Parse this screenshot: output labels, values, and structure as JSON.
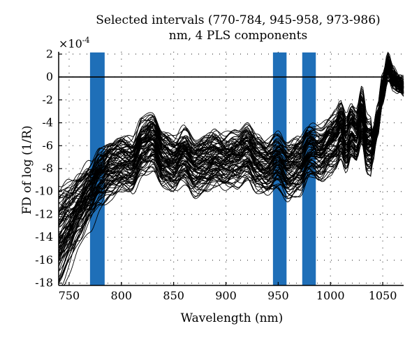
{
  "chart_data": {
    "type": "line",
    "title_line1": "Selected intervals (770-784, 945-958, 973-986)",
    "title_line2": "nm, 4 PLS components",
    "xlabel": "Wavelength (nm)",
    "ylabel": "FD of log (1/R)",
    "y_multiplier": "×10",
    "y_multiplier_exp": "-4",
    "xlim": [
      740,
      1070
    ],
    "ylim": [
      -18.2,
      2.2
    ],
    "x_ticks": [
      750,
      800,
      850,
      900,
      950,
      1000,
      1050
    ],
    "y_ticks": [
      2,
      0,
      -2,
      -4,
      -6,
      -8,
      -10,
      -12,
      -14,
      -16,
      -18
    ],
    "x_tick_labels": [
      "750",
      "800",
      "850",
      "900",
      "950",
      "1000",
      "1050"
    ],
    "y_tick_labels": [
      "2",
      "0",
      "-2",
      "-4",
      "-6",
      "-8",
      "-10",
      "-12",
      "-14",
      "-16",
      "-18"
    ],
    "grid": true,
    "zero_line": 0,
    "intervals": [
      [
        770,
        784
      ],
      [
        945,
        958
      ],
      [
        973,
        986
      ]
    ],
    "interval_color": "#1f6fb8",
    "line_color": "#000000",
    "spectra_count": 90,
    "mean_spectrum": {
      "x": [
        740,
        750,
        760,
        770,
        780,
        790,
        800,
        810,
        820,
        830,
        840,
        850,
        860,
        870,
        880,
        890,
        900,
        910,
        920,
        930,
        940,
        950,
        960,
        970,
        980,
        990,
        1000,
        1005,
        1010,
        1015,
        1020,
        1025,
        1030,
        1035,
        1040,
        1045,
        1050,
        1055,
        1060,
        1065,
        1070
      ],
      "y": [
        -11.0,
        -10.6,
        -10.1,
        -9.4,
        -8.6,
        -8.0,
        -7.7,
        -7.8,
        -6.3,
        -5.6,
        -7.3,
        -7.7,
        -7.0,
        -7.9,
        -7.6,
        -7.2,
        -7.5,
        -7.2,
        -6.6,
        -7.6,
        -8.0,
        -7.4,
        -8.2,
        -7.8,
        -6.6,
        -6.9,
        -6.0,
        -5.7,
        -4.8,
        -5.8,
        -4.8,
        -5.4,
        -3.6,
        -6.1,
        -6.1,
        -4.0,
        -1.2,
        0.8,
        -0.2,
        -0.7,
        -1.0
      ]
    }
  }
}
